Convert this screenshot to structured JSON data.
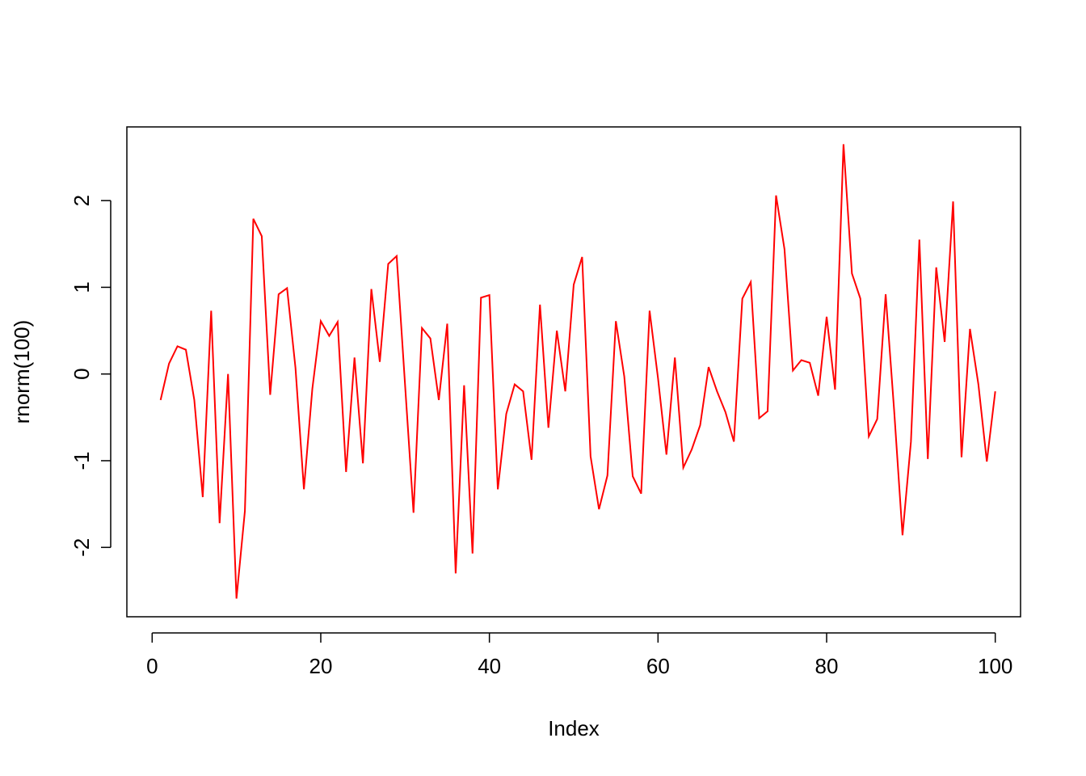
{
  "chart_data": {
    "type": "line",
    "title": "",
    "xlabel": "Index",
    "ylabel": "rnorm(100)",
    "xlim": [
      -3,
      103
    ],
    "ylim": [
      -2.8,
      2.85
    ],
    "x_ticks": [
      0,
      20,
      40,
      60,
      80,
      100
    ],
    "x_tick_labels": [
      "0",
      "20",
      "40",
      "60",
      "80",
      "100"
    ],
    "y_ticks": [
      -2,
      -1,
      0,
      1,
      2
    ],
    "y_tick_labels": [
      "-2",
      "-1",
      "0",
      "1",
      "2"
    ],
    "grid": false,
    "line_color": "#ff0000",
    "series": [
      {
        "x": [
          1,
          2,
          3,
          4,
          5,
          6,
          7,
          8,
          9,
          10,
          11,
          12,
          13,
          14,
          15,
          16,
          17,
          18,
          19,
          20,
          21,
          22,
          23,
          24,
          25,
          26,
          27,
          28,
          29,
          30,
          31,
          32,
          33,
          34,
          35,
          36,
          37,
          38,
          39,
          40,
          41,
          42,
          43,
          44,
          45,
          46,
          47,
          48,
          49,
          50,
          51,
          52,
          53,
          54,
          55,
          56,
          57,
          58,
          59,
          60,
          61,
          62,
          63,
          64,
          65,
          66,
          67,
          68,
          69,
          70,
          71,
          72,
          73,
          74,
          75,
          76,
          77,
          78,
          79,
          80,
          81,
          82,
          83,
          84,
          85,
          86,
          87,
          88,
          89,
          90,
          91,
          92,
          93,
          94,
          95,
          96,
          97,
          98,
          99,
          100
        ],
        "values": [
          -0.3,
          0.12,
          0.32,
          0.28,
          -0.3,
          -1.42,
          0.73,
          -1.72,
          0.0,
          -2.59,
          -1.58,
          1.79,
          1.59,
          -0.24,
          0.92,
          0.99,
          0.07,
          -1.33,
          -0.17,
          0.61,
          0.44,
          0.6,
          -1.13,
          0.19,
          -1.03,
          0.98,
          0.14,
          1.27,
          1.36,
          -0.13,
          -1.6,
          0.53,
          0.41,
          -0.3,
          0.58,
          -2.3,
          -0.13,
          -2.07,
          0.88,
          0.91,
          -1.33,
          -0.46,
          -0.12,
          -0.2,
          -0.99,
          0.8,
          -0.62,
          0.5,
          -0.2,
          1.03,
          1.35,
          -0.95,
          -1.56,
          -1.17,
          0.61,
          -0.03,
          -1.18,
          -1.38,
          0.73,
          -0.05,
          -0.93,
          0.19,
          -1.08,
          -0.87,
          -0.59,
          0.08,
          -0.2,
          -0.44,
          -0.78,
          0.87,
          1.06,
          -0.51,
          -0.43,
          2.06,
          1.44,
          0.04,
          0.16,
          0.13,
          -0.25,
          0.66,
          -0.18,
          2.65,
          1.16,
          0.87,
          -0.72,
          -0.52,
          0.92,
          -0.41,
          -1.86,
          -0.78,
          1.55,
          -0.98,
          1.23,
          0.37,
          1.99,
          -0.96,
          0.52,
          -0.12,
          -1.01,
          -0.2
        ]
      }
    ]
  }
}
